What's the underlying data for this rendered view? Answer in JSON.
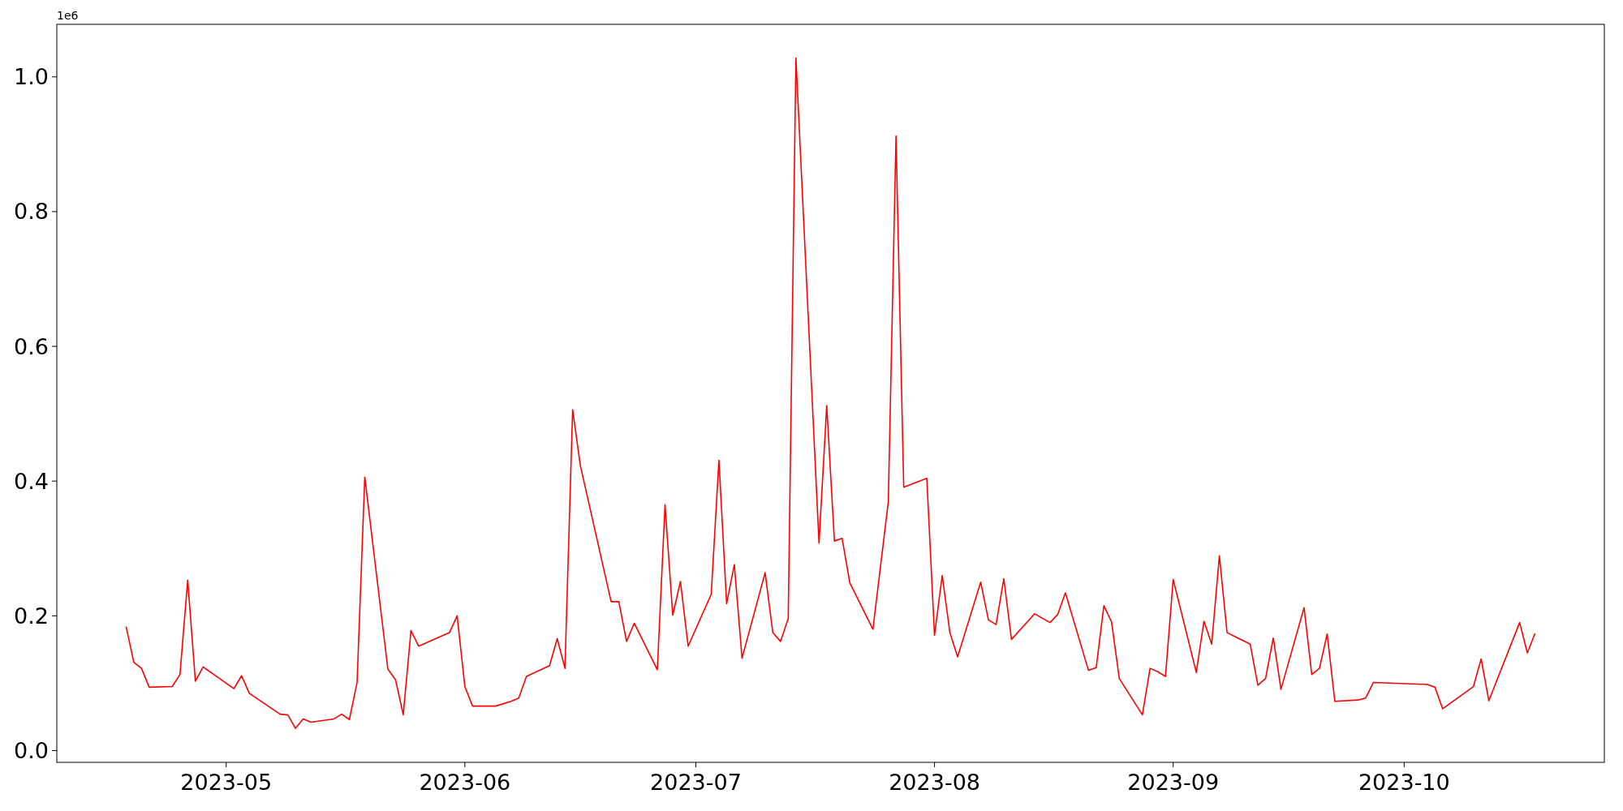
{
  "chart_data": {
    "type": "line",
    "annotations": [
      "1e6"
    ],
    "x": [
      "2023-04-18",
      "2023-04-19",
      "2023-04-20",
      "2023-04-21",
      "2023-04-24",
      "2023-04-25",
      "2023-04-26",
      "2023-04-27",
      "2023-04-28",
      "2023-05-02",
      "2023-05-03",
      "2023-05-04",
      "2023-05-08",
      "2023-05-09",
      "2023-05-10",
      "2023-05-11",
      "2023-05-12",
      "2023-05-15",
      "2023-05-16",
      "2023-05-17",
      "2023-05-18",
      "2023-05-19",
      "2023-05-22",
      "2023-05-23",
      "2023-05-24",
      "2023-05-25",
      "2023-05-26",
      "2023-05-30",
      "2023-05-31",
      "2023-06-01",
      "2023-06-02",
      "2023-06-05",
      "2023-06-07",
      "2023-06-08",
      "2023-06-09",
      "2023-06-12",
      "2023-06-13",
      "2023-06-14",
      "2023-06-15",
      "2023-06-16",
      "2023-06-20",
      "2023-06-21",
      "2023-06-22",
      "2023-06-23",
      "2023-06-26",
      "2023-06-27",
      "2023-06-28",
      "2023-06-29",
      "2023-06-30",
      "2023-07-03",
      "2023-07-04",
      "2023-07-05",
      "2023-07-06",
      "2023-07-07",
      "2023-07-10",
      "2023-07-11",
      "2023-07-12",
      "2023-07-13",
      "2023-07-14",
      "2023-07-17",
      "2023-07-18",
      "2023-07-19",
      "2023-07-20",
      "2023-07-21",
      "2023-07-24",
      "2023-07-26",
      "2023-07-27",
      "2023-07-28",
      "2023-07-31",
      "2023-08-01",
      "2023-08-02",
      "2023-08-03",
      "2023-08-04",
      "2023-08-07",
      "2023-08-08",
      "2023-08-09",
      "2023-08-10",
      "2023-08-11",
      "2023-08-14",
      "2023-08-16",
      "2023-08-17",
      "2023-08-18",
      "2023-08-21",
      "2023-08-22",
      "2023-08-23",
      "2023-08-24",
      "2023-08-25",
      "2023-08-28",
      "2023-08-29",
      "2023-08-30",
      "2023-08-31",
      "2023-09-01",
      "2023-09-04",
      "2023-09-05",
      "2023-09-06",
      "2023-09-07",
      "2023-09-08",
      "2023-09-11",
      "2023-09-12",
      "2023-09-13",
      "2023-09-14",
      "2023-09-15",
      "2023-09-18",
      "2023-09-19",
      "2023-09-20",
      "2023-09-21",
      "2023-09-22",
      "2023-09-25",
      "2023-09-26",
      "2023-09-27",
      "2023-10-04",
      "2023-10-05",
      "2023-10-06",
      "2023-10-10",
      "2023-10-11",
      "2023-10-12",
      "2023-10-16",
      "2023-10-17",
      "2023-10-18"
    ],
    "series": [
      {
        "color": "#ff0000",
        "values": [
          0.184,
          0.131,
          0.122,
          0.094,
          0.095,
          0.113,
          0.253,
          0.103,
          0.124,
          0.092,
          0.111,
          0.085,
          0.054,
          0.053,
          0.033,
          0.047,
          0.042,
          0.047,
          0.054,
          0.046,
          0.101,
          0.406,
          0.121,
          0.105,
          0.053,
          0.178,
          0.155,
          0.175,
          0.2,
          0.095,
          0.066,
          0.066,
          0.073,
          0.078,
          0.11,
          0.126,
          0.166,
          0.122,
          0.506,
          0.423,
          0.221,
          0.221,
          0.162,
          0.189,
          0.12,
          0.365,
          0.201,
          0.251,
          0.155,
          0.232,
          0.431,
          0.218,
          0.276,
          0.137,
          0.264,
          0.175,
          0.162,
          0.196,
          1.028,
          0.308,
          0.512,
          0.311,
          0.315,
          0.249,
          0.18,
          0.369,
          0.912,
          0.391,
          0.404,
          0.171,
          0.26,
          0.175,
          0.139,
          0.25,
          0.194,
          0.187,
          0.255,
          0.165,
          0.203,
          0.19,
          0.202,
          0.234,
          0.119,
          0.123,
          0.215,
          0.191,
          0.107,
          0.053,
          0.122,
          0.117,
          0.11,
          0.254,
          0.116,
          0.192,
          0.158,
          0.289,
          0.175,
          0.158,
          0.097,
          0.107,
          0.167,
          0.091,
          0.212,
          0.113,
          0.122,
          0.173,
          0.073,
          0.075,
          0.078,
          0.101,
          0.098,
          0.094,
          0.062,
          0.095,
          0.136,
          0.074,
          0.19,
          0.145,
          0.174
        ]
      }
    ],
    "xlim": [
      "2023-04-09",
      "2023-10-27"
    ],
    "xticks": [
      "2023-05",
      "2023-06",
      "2023-07",
      "2023-08",
      "2023-09",
      "2023-10"
    ],
    "ylim": [
      -0.0175,
      1.078
    ],
    "yticks": [
      {
        "value": 0,
        "label": "0.0"
      },
      0.2,
      0.4,
      0.6,
      0.8,
      {
        "value": 1,
        "label": "1.0"
      }
    ],
    "grid": false,
    "marker": "none",
    "line_style": "solid"
  }
}
